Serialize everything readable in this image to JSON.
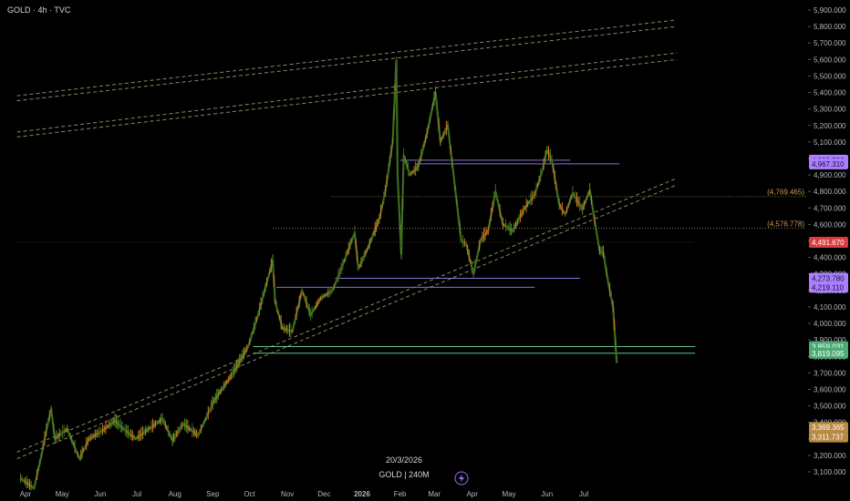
{
  "header": {
    "symbol_label": "GOLD · 4h · TVC"
  },
  "footer": {
    "date_label": "20/3/2026",
    "symbol_tf_label": "GOLD | 240M"
  },
  "colors": {
    "background": "#000000",
    "axis_text": "#b2b5be",
    "candle": "#3e6b1f",
    "candle_light": "#5d8f2a",
    "candle_orange": "#c8781e",
    "purple": "#8a6fd6",
    "green_line": "#67c48a",
    "channel": "#b9b487",
    "red_badge": "#d93c3c",
    "purple_badge": "#a980ff",
    "green_badge": "#4caa74",
    "tan_badge": "#b88a43"
  },
  "chart_data": {
    "type": "line",
    "title": "GOLD · 4h · TVC",
    "ylim": [
      3050,
      5950
    ],
    "y_ticks": [
      "5,900.000",
      "5,800.000",
      "5,700.000",
      "5,600.000",
      "5,500.000",
      "5,400.000",
      "5,300.000",
      "5,200.000",
      "5,100.000",
      "5,000.000",
      "4,900.000",
      "4,800.000",
      "4,700.000",
      "4,600.000",
      "4,500.000",
      "4,400.000",
      "4,300.000",
      "4,200.000",
      "4,100.000",
      "4,000.000",
      "3,900.000",
      "3,800.000",
      "3,700.000",
      "3,600.000",
      "3,500.000",
      "3,400.000",
      "3,300.000",
      "3,200.000",
      "3,100.000"
    ],
    "x_ticks": [
      "Apr",
      "May",
      "Jun",
      "Jul",
      "Aug",
      "Sep",
      "Oct",
      "Nov",
      "Dec",
      "2026",
      "Feb",
      "Mar",
      "Apr",
      "May",
      "Jun",
      "Jul"
    ],
    "price_path": [
      [
        "2025-03-28",
        3060
      ],
      [
        "2025-04-08",
        3000
      ],
      [
        "2025-04-14",
        3200
      ],
      [
        "2025-04-18",
        3350
      ],
      [
        "2025-04-22",
        3480
      ],
      [
        "2025-04-25",
        3300
      ],
      [
        "2025-05-05",
        3360
      ],
      [
        "2025-05-15",
        3180
      ],
      [
        "2025-05-23",
        3300
      ],
      [
        "2025-06-03",
        3350
      ],
      [
        "2025-06-13",
        3410
      ],
      [
        "2025-06-20",
        3360
      ],
      [
        "2025-06-30",
        3300
      ],
      [
        "2025-07-07",
        3340
      ],
      [
        "2025-07-22",
        3420
      ],
      [
        "2025-07-30",
        3290
      ],
      [
        "2025-08-08",
        3390
      ],
      [
        "2025-08-20",
        3320
      ],
      [
        "2025-09-02",
        3530
      ],
      [
        "2025-09-16",
        3680
      ],
      [
        "2025-09-30",
        3860
      ],
      [
        "2025-10-08",
        4050
      ],
      [
        "2025-10-20",
        4380
      ],
      [
        "2025-10-22",
        4130
      ],
      [
        "2025-10-28",
        3970
      ],
      [
        "2025-11-05",
        3950
      ],
      [
        "2025-11-13",
        4200
      ],
      [
        "2025-11-20",
        4050
      ],
      [
        "2025-11-28",
        4150
      ],
      [
        "2025-12-08",
        4200
      ],
      [
        "2025-12-15",
        4330
      ],
      [
        "2025-12-26",
        4550
      ],
      [
        "2025-12-29",
        4330
      ],
      [
        "2026-01-06",
        4460
      ],
      [
        "2026-01-15",
        4630
      ],
      [
        "2026-01-20",
        4800
      ],
      [
        "2026-01-26",
        5100
      ],
      [
        "2026-01-29",
        5595
      ],
      [
        "2026-01-30",
        4900
      ],
      [
        "2026-02-02",
        4420
      ],
      [
        "2026-02-04",
        5020
      ],
      [
        "2026-02-09",
        4900
      ],
      [
        "2026-02-16",
        4950
      ],
      [
        "2026-02-23",
        5150
      ],
      [
        "2026-03-02",
        5400
      ],
      [
        "2026-03-06",
        5100
      ],
      [
        "2026-03-12",
        5200
      ],
      [
        "2026-03-18",
        4820
      ],
      [
        "2026-03-23",
        4500
      ],
      [
        "2026-03-27",
        4480
      ],
      [
        "2026-04-02",
        4300
      ],
      [
        "2026-04-08",
        4510
      ],
      [
        "2026-04-14",
        4560
      ],
      [
        "2026-04-20",
        4800
      ],
      [
        "2026-04-26",
        4600
      ],
      [
        "2026-05-04",
        4560
      ],
      [
        "2026-05-14",
        4700
      ],
      [
        "2026-05-22",
        4780
      ],
      [
        "2026-05-28",
        4920
      ],
      [
        "2026-06-01",
        5050
      ],
      [
        "2026-06-05",
        4990
      ],
      [
        "2026-06-11",
        4720
      ],
      [
        "2026-06-16",
        4660
      ],
      [
        "2026-06-22",
        4790
      ],
      [
        "2026-06-30",
        4690
      ],
      [
        "2026-07-06",
        4810
      ],
      [
        "2026-07-10",
        4620
      ],
      [
        "2026-07-14",
        4440
      ],
      [
        "2026-07-17",
        4430
      ],
      [
        "2026-07-21",
        4250
      ],
      [
        "2026-07-25",
        4100
      ],
      [
        "2026-07-28",
        3760
      ]
    ],
    "horizontal_levels": [
      {
        "label": "4,989.590",
        "value": 4989.59,
        "badge": "purple",
        "from": "2026-02-01",
        "to": "2026-06-20"
      },
      {
        "label": "4,967.310",
        "value": 4967.31,
        "badge": "purple",
        "from": "2026-02-14",
        "to": "2026-07-30"
      },
      {
        "label": "4,273.780",
        "value": 4273.78,
        "badge": "purple",
        "from": "2025-12-10",
        "to": "2026-06-28"
      },
      {
        "label": "4,219.110",
        "value": 4219.11,
        "badge": "purple",
        "from": "2025-10-23",
        "to": "2026-05-22"
      },
      {
        "label": "3,859.031",
        "value": 3859.031,
        "badge": "green",
        "from": "2025-10-04",
        "to": "2026-09-30"
      },
      {
        "label": "3,819.095",
        "value": 3819.095,
        "badge": "green",
        "from": "2025-10-04",
        "to": "2026-09-30"
      },
      {
        "label": "4,491.670",
        "value": 4491.67,
        "badge": "red",
        "from": "2025-03-25",
        "to": "2026-09-30"
      }
    ],
    "dotted_levels": [
      {
        "label": "(4,769.465)",
        "value": 4769.465,
        "from": "2025-12-07"
      },
      {
        "label": "(4,576.778)",
        "value": 4576.778,
        "from": "2025-10-20"
      }
    ],
    "tan_badges": [
      {
        "label": "3,369.365",
        "value": 3369.365
      },
      {
        "label": "3,311.737",
        "value": 3311.737
      }
    ],
    "trendlines": [
      {
        "points": [
          [
            "2025-03-25",
            5380
          ],
          [
            "2026-09-15",
            5840
          ]
        ]
      },
      {
        "points": [
          [
            "2025-03-25",
            5350
          ],
          [
            "2026-09-15",
            5800
          ]
        ]
      },
      {
        "points": [
          [
            "2025-03-25",
            5160
          ],
          [
            "2026-09-15",
            5640
          ]
        ]
      },
      {
        "points": [
          [
            "2025-03-25",
            5130
          ],
          [
            "2026-09-15",
            5600
          ]
        ]
      },
      {
        "points": [
          [
            "2025-03-25",
            3220
          ],
          [
            "2026-09-15",
            4880
          ]
        ]
      },
      {
        "points": [
          [
            "2025-03-25",
            3180
          ],
          [
            "2026-09-15",
            4840
          ]
        ]
      }
    ]
  }
}
